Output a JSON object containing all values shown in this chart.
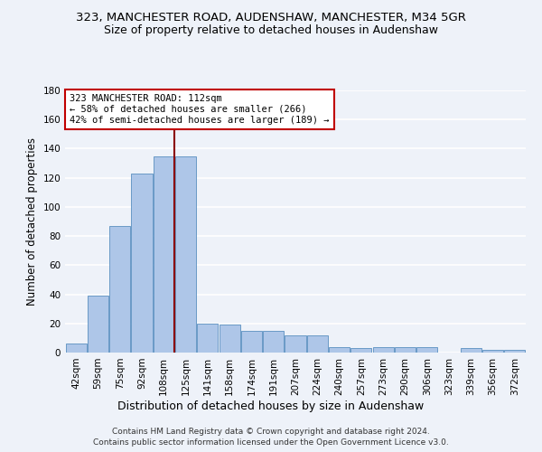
{
  "title_line1": "323, MANCHESTER ROAD, AUDENSHAW, MANCHESTER, M34 5GR",
  "title_line2": "Size of property relative to detached houses in Audenshaw",
  "xlabel": "Distribution of detached houses by size in Audenshaw",
  "ylabel": "Number of detached properties",
  "categories": [
    "42sqm",
    "59sqm",
    "75sqm",
    "92sqm",
    "108sqm",
    "125sqm",
    "141sqm",
    "158sqm",
    "174sqm",
    "191sqm",
    "207sqm",
    "224sqm",
    "240sqm",
    "257sqm",
    "273sqm",
    "290sqm",
    "306sqm",
    "323sqm",
    "339sqm",
    "356sqm",
    "372sqm"
  ],
  "values": [
    6,
    39,
    87,
    123,
    135,
    135,
    20,
    19,
    15,
    15,
    12,
    12,
    4,
    3,
    4,
    4,
    4,
    0,
    3,
    2,
    2
  ],
  "bar_color": "#aec6e8",
  "bar_edge_color": "#5a8fc0",
  "vline_x": 4.5,
  "vline_color": "#8b0000",
  "annotation_text": "323 MANCHESTER ROAD: 112sqm\n← 58% of detached houses are smaller (266)\n42% of semi-detached houses are larger (189) →",
  "annotation_box_color": "white",
  "annotation_box_edge": "#c00000",
  "ylim": [
    0,
    180
  ],
  "yticks": [
    0,
    20,
    40,
    60,
    80,
    100,
    120,
    140,
    160,
    180
  ],
  "footer_line1": "Contains HM Land Registry data © Crown copyright and database right 2024.",
  "footer_line2": "Contains public sector information licensed under the Open Government Licence v3.0.",
  "background_color": "#eef2f9",
  "grid_color": "#ffffff",
  "title_fontsize": 9.5,
  "subtitle_fontsize": 9,
  "tick_fontsize": 7.5,
  "ylabel_fontsize": 8.5,
  "xlabel_fontsize": 9
}
